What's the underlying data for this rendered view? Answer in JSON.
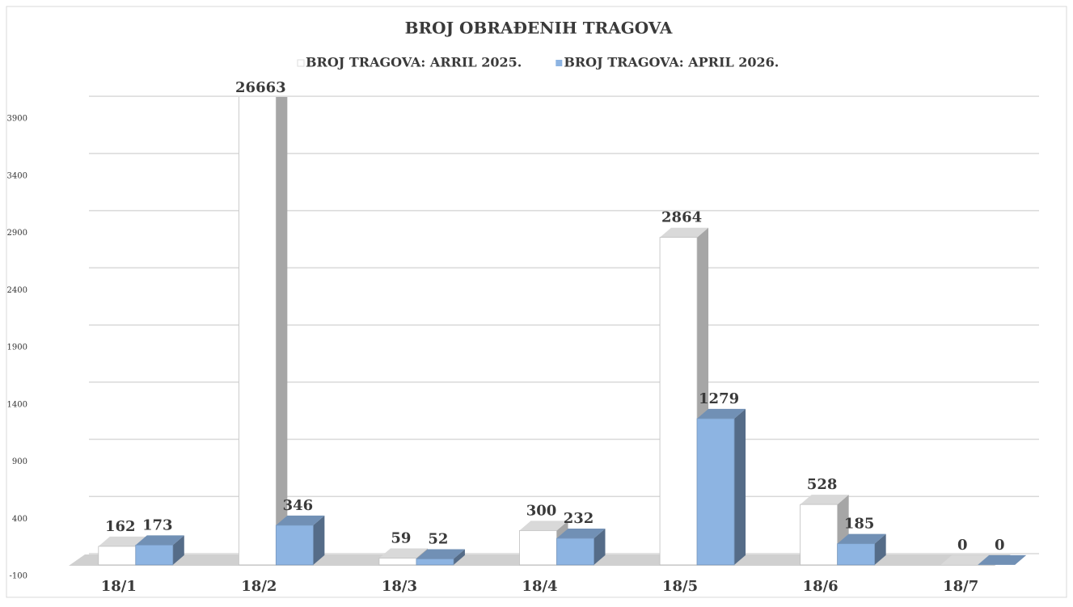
{
  "chart_data": {
    "type": "bar3d",
    "title": "BROJ OBRAĐENIH TRAGOVA",
    "categories": [
      "18/1",
      "18/2",
      "18/3",
      "18/4",
      "18/5",
      "18/6",
      "18/7"
    ],
    "series": [
      {
        "name": "BROJ TRAGOVA: ARRIL 2025.",
        "color": "#ffffff",
        "values": [
          162,
          26663,
          59,
          300,
          2864,
          528,
          0
        ]
      },
      {
        "name": "BROJ TRAGOVA: APRIL 2026.",
        "color": "#8db4e2",
        "values": [
          173,
          346,
          52,
          232,
          1279,
          185,
          0
        ]
      }
    ],
    "ylim": [
      -100,
      4000
    ],
    "yticks": [
      -100,
      400,
      900,
      1400,
      1900,
      2400,
      2900,
      3400,
      3900
    ],
    "grid": true,
    "legend": "top"
  }
}
